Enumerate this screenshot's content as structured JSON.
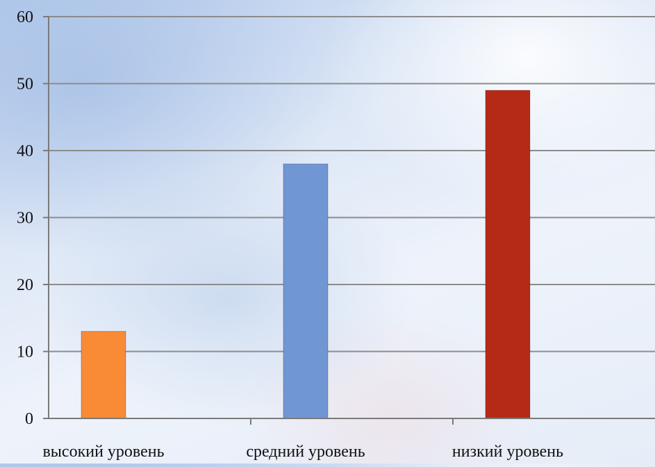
{
  "chart_data": {
    "type": "bar",
    "categories": [
      "высокий уровень",
      "средний уровень",
      "низкий уровень"
    ],
    "values": [
      13,
      38,
      49
    ],
    "colors": [
      "#f98a36",
      "#7196d4",
      "#b52a17"
    ],
    "ylim": [
      0,
      60
    ],
    "yticks": [
      0,
      10,
      20,
      30,
      40,
      50,
      60
    ],
    "grid": true,
    "legend": "none",
    "title": "",
    "xlabel": "",
    "ylabel": ""
  }
}
